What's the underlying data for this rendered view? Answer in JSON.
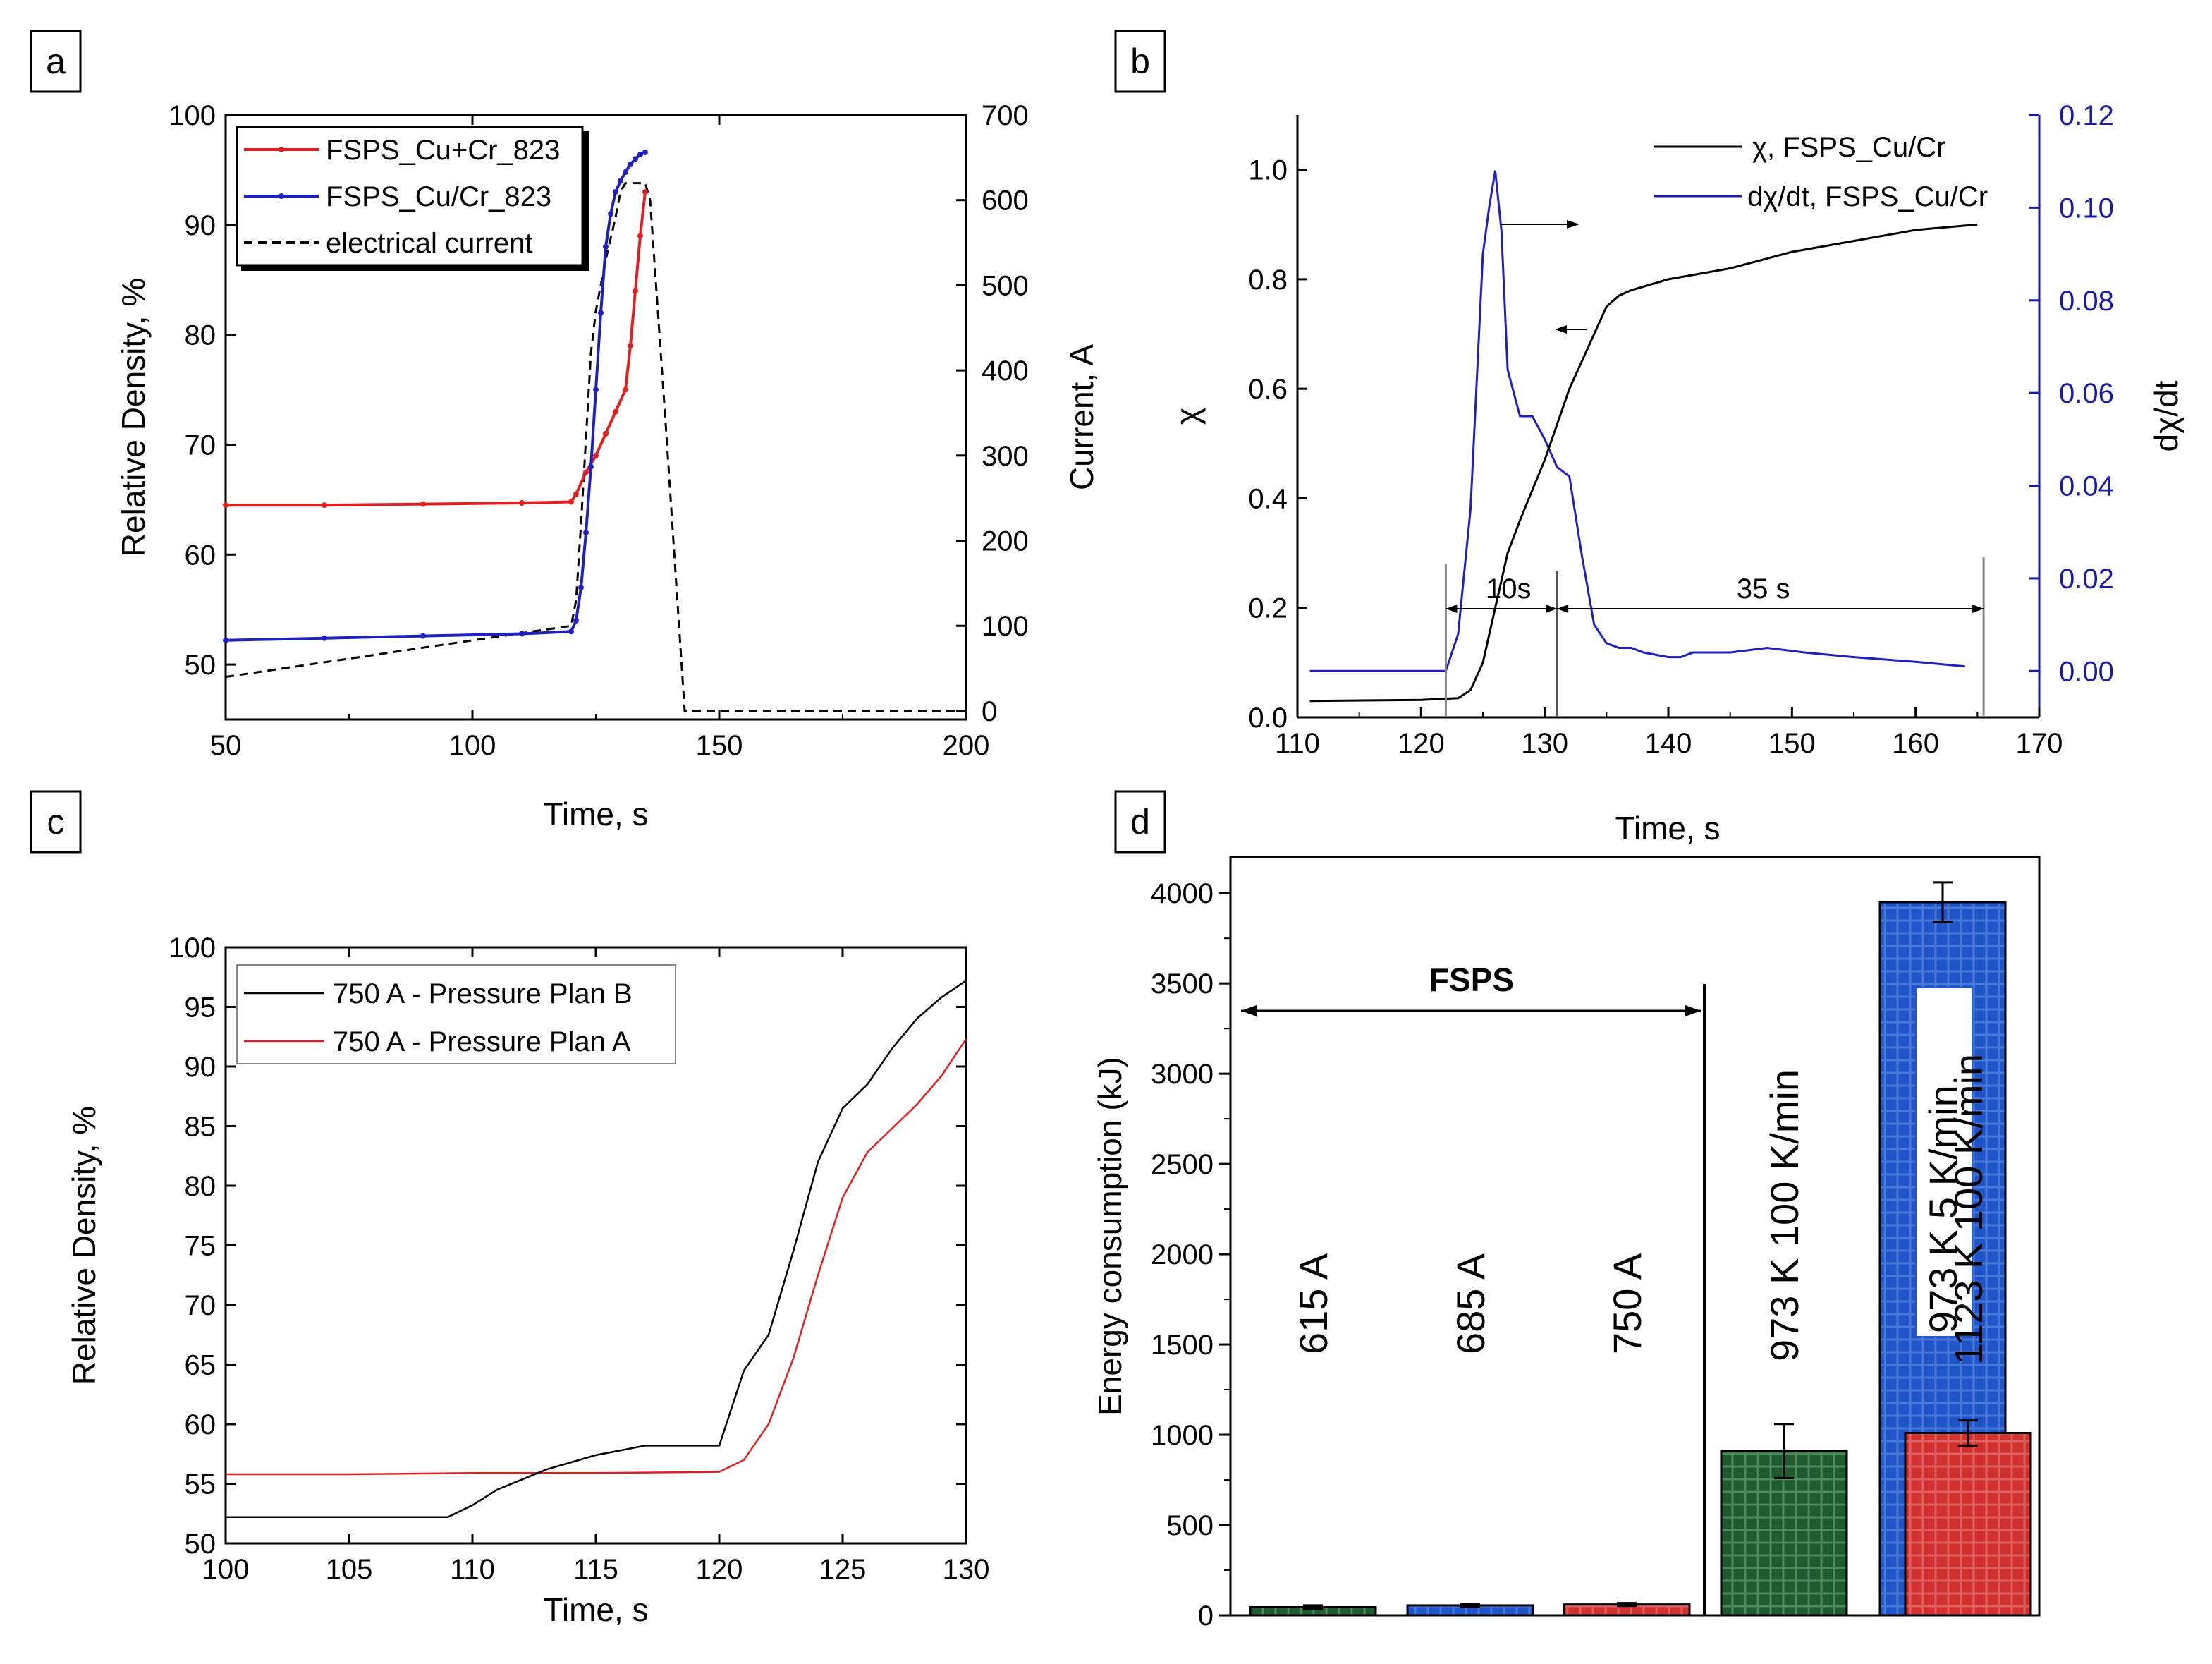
{
  "chart_data": [
    {
      "panel": "a",
      "type": "line",
      "title": "",
      "xlabel": "Time, s",
      "ylabel": "Relative Density, %",
      "y2label": "Current, A",
      "xlim": [
        50,
        200
      ],
      "ylim": [
        45,
        100
      ],
      "y2lim": [
        -10,
        700
      ],
      "xticks": [
        50,
        100,
        150,
        200
      ],
      "yticks": [
        50,
        60,
        70,
        80,
        90,
        100
      ],
      "y2ticks": [
        0,
        100,
        200,
        300,
        400,
        500,
        600,
        700
      ],
      "legend_position": "top-left",
      "colors": {
        "cu_cr_mix": "#e02020",
        "cu_cr_alloy": "#2020c0",
        "current": "#000000"
      },
      "series": [
        {
          "name": "FSPS_Cu+Cr_823",
          "axis": "left",
          "x": [
            50,
            70,
            90,
            110,
            120,
            121,
            123,
            125,
            127,
            129,
            131,
            132,
            133,
            134,
            135
          ],
          "y": [
            64.5,
            64.5,
            64.6,
            64.7,
            64.8,
            65.5,
            67.5,
            69,
            71,
            73,
            75,
            79,
            84,
            89,
            93
          ]
        },
        {
          "name": "FSPS_Cu/Cr_823",
          "axis": "left",
          "x": [
            50,
            70,
            90,
            110,
            120,
            121,
            122,
            123,
            124,
            125,
            126,
            127,
            128,
            129,
            130,
            131,
            132,
            133,
            134,
            135
          ],
          "y": [
            52.2,
            52.4,
            52.6,
            52.8,
            53,
            54,
            57,
            62,
            68,
            75,
            82,
            88,
            91,
            93,
            94,
            94.8,
            95.5,
            96,
            96.4,
            96.6
          ]
        },
        {
          "name": "electrical current",
          "axis": "right",
          "x": [
            50,
            120,
            121,
            122,
            123,
            124,
            125,
            127,
            129,
            130,
            131,
            133,
            135,
            136,
            139,
            143,
            150,
            200
          ],
          "y": [
            40,
            100,
            130,
            220,
            320,
            420,
            470,
            530,
            580,
            610,
            620,
            620,
            620,
            600,
            350,
            0,
            0,
            0
          ]
        }
      ]
    },
    {
      "panel": "b",
      "type": "line",
      "title": "",
      "xlabel": "Time, s",
      "ylabel": "χ",
      "y2label": "dχ/dt",
      "xlim": [
        110,
        170
      ],
      "ylim": [
        0.0,
        1.1
      ],
      "y2lim": [
        -0.01,
        0.12
      ],
      "xticks": [
        110,
        120,
        130,
        140,
        150,
        160,
        170
      ],
      "yticks": [
        0.0,
        0.2,
        0.4,
        0.6,
        0.8,
        1.0
      ],
      "y2ticks": [
        0.0,
        0.02,
        0.04,
        0.06,
        0.08,
        0.1,
        0.12
      ],
      "legend_position": "top-right",
      "colors": {
        "chi": "#000000",
        "rate": "#2020c0"
      },
      "annotations": {
        "interval_1": "10s",
        "interval_2": "35 s"
      },
      "series": [
        {
          "name": "χ, FSPS_Cu/Cr",
          "axis": "left",
          "x": [
            111,
            120,
            123,
            124,
            125,
            126,
            127,
            128,
            130,
            132,
            134,
            135,
            136,
            137,
            140,
            145,
            150,
            155,
            160,
            165
          ],
          "y": [
            0.03,
            0.032,
            0.035,
            0.05,
            0.1,
            0.2,
            0.3,
            0.36,
            0.47,
            0.6,
            0.7,
            0.75,
            0.77,
            0.78,
            0.8,
            0.82,
            0.85,
            0.87,
            0.89,
            0.9
          ]
        },
        {
          "name": "dχ/dt,  FSPS_Cu/Cr",
          "axis": "right",
          "x": [
            111,
            122,
            123,
            124,
            125,
            125.5,
            126,
            126.5,
            127,
            128,
            129,
            130,
            131,
            132,
            133,
            134,
            135,
            136,
            137,
            138,
            140,
            141,
            142,
            145,
            148,
            151,
            155,
            160,
            164
          ],
          "y": [
            0.0,
            0.0,
            0.008,
            0.035,
            0.09,
            0.1,
            0.108,
            0.095,
            0.065,
            0.055,
            0.055,
            0.05,
            0.044,
            0.042,
            0.025,
            0.01,
            0.006,
            0.005,
            0.005,
            0.004,
            0.003,
            0.003,
            0.004,
            0.004,
            0.005,
            0.004,
            0.003,
            0.002,
            0.001
          ]
        }
      ]
    },
    {
      "panel": "c",
      "type": "line",
      "title": "",
      "xlabel": "Time, s",
      "ylabel": "Relative Density, %",
      "xlim": [
        100,
        130
      ],
      "ylim": [
        50,
        100
      ],
      "xticks": [
        100,
        105,
        110,
        115,
        120,
        125,
        130
      ],
      "yticks": [
        50,
        55,
        60,
        65,
        70,
        75,
        80,
        85,
        90,
        95,
        100
      ],
      "legend_position": "top-left",
      "colors": {
        "plan_b": "#000000",
        "plan_a": "#e02020"
      },
      "series": [
        {
          "name": "750 A - Pressure Plan B",
          "x": [
            100,
            105,
            109,
            110,
            111,
            113,
            115,
            117,
            119,
            120,
            121,
            122,
            123,
            124,
            125,
            126,
            127,
            128,
            129,
            130
          ],
          "y": [
            52.2,
            52.2,
            52.2,
            53.2,
            54.5,
            56.2,
            57.4,
            58.2,
            58.2,
            58.2,
            64.5,
            67.5,
            74.5,
            82,
            86.5,
            88.5,
            91.5,
            94,
            95.8,
            97.2
          ]
        },
        {
          "name": "750 A - Pressure Plan A",
          "x": [
            100,
            105,
            110,
            115,
            120,
            121,
            122,
            123,
            124,
            125,
            126,
            127,
            128,
            129,
            130
          ],
          "y": [
            55.8,
            55.8,
            55.9,
            55.9,
            56,
            57,
            60,
            65.5,
            72.5,
            79,
            82.8,
            84.8,
            86.8,
            89.2,
            92.3
          ]
        }
      ]
    },
    {
      "panel": "d",
      "type": "bar",
      "title": "",
      "xlabel": "",
      "ylabel": "Energy consumption (kJ)",
      "ylim": [
        0,
        4200
      ],
      "yticks": [
        0,
        500,
        1000,
        1500,
        2000,
        2500,
        3000,
        3500,
        4000
      ],
      "group_label": "FSPS",
      "categories": [
        "615 A",
        "685 A",
        "750 A",
        "973 K 100 K/min",
        "973 K 5 K/min",
        "1123 K 100 K/min"
      ],
      "values": [
        45,
        55,
        60,
        910,
        3950,
        1010
      ],
      "errors": [
        10,
        8,
        8,
        150,
        110,
        70
      ],
      "colors": [
        "#1f5a30",
        "#1f55c8",
        "#d03030",
        "#1f5a30",
        "#1f55c8",
        "#d03030"
      ]
    }
  ],
  "panels": {
    "a": "a",
    "b": "b",
    "c": "c",
    "d": "d"
  }
}
